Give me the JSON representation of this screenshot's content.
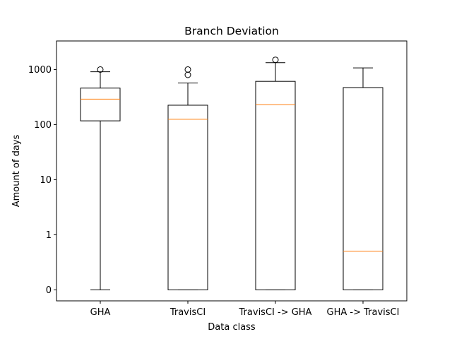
{
  "chart_data": {
    "type": "boxplot",
    "title": "Branch Deviation",
    "xlabel": "Data class",
    "ylabel": "Amount of days",
    "yscale": "symlog",
    "ylim": [
      -0.2,
      3300
    ],
    "yticks": [
      0,
      1,
      10,
      100,
      1000
    ],
    "ytick_labels": [
      "0",
      "1",
      "10",
      "100",
      "1000"
    ],
    "grid": false,
    "median_color": "#ff7f0e",
    "box_color": "#000000",
    "categories": [
      "GHA",
      "TravisCI",
      "TravisCI -> GHA",
      "GHA -> TravisCI"
    ],
    "boxes": [
      {
        "whisker_low": 0,
        "q1": 117,
        "median": 290,
        "q3": 460,
        "whisker_high": 910,
        "outliers": [
          1000
        ]
      },
      {
        "whisker_low": 0,
        "q1": 0,
        "median": 125,
        "q3": 225,
        "whisker_high": 570,
        "outliers": [
          800,
          1000
        ]
      },
      {
        "whisker_low": 0,
        "q1": 0,
        "median": 230,
        "q3": 610,
        "whisker_high": 1330,
        "outliers": [
          1500
        ]
      },
      {
        "whisker_low": 0,
        "q1": 0,
        "median": 0.7,
        "q3": 470,
        "whisker_high": 1070,
        "outliers": []
      }
    ]
  }
}
